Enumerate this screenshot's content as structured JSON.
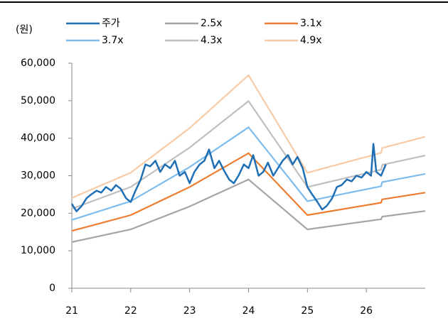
{
  "chart_data": {
    "type": "line",
    "unit_label": "(원)",
    "x": [
      21,
      22,
      23,
      24,
      25,
      26.25,
      26.27,
      27
    ],
    "xlim": [
      21,
      27
    ],
    "xticks": [
      21,
      22,
      23,
      24,
      25,
      26
    ],
    "ylim": [
      0,
      60000
    ],
    "yticks": [
      0,
      {
        "value": 10000,
        "label": "10,000"
      },
      {
        "value": 20000,
        "label": "20,000"
      },
      {
        "value": 30000,
        "label": "30,000"
      },
      {
        "value": 40000,
        "label": "40,000"
      },
      {
        "value": 50000,
        "label": "50,000"
      },
      {
        "value": 60000,
        "label": "60,000"
      }
    ],
    "series": [
      {
        "name": "주가",
        "color": "#1f6fb5",
        "x": [
          21.0,
          21.08,
          21.17,
          21.25,
          21.33,
          21.42,
          21.5,
          21.58,
          21.67,
          21.75,
          21.83,
          21.92,
          22.0,
          22.08,
          22.17,
          22.25,
          22.33,
          22.42,
          22.5,
          22.58,
          22.67,
          22.75,
          22.83,
          22.92,
          23.0,
          23.08,
          23.17,
          23.25,
          23.33,
          23.42,
          23.5,
          23.58,
          23.67,
          23.75,
          23.83,
          23.92,
          24.0,
          24.08,
          24.17,
          24.25,
          24.33,
          24.42,
          24.5,
          24.58,
          24.67,
          24.75,
          24.83,
          24.92,
          25.0,
          25.08,
          25.17,
          25.25,
          25.33,
          25.42,
          25.5,
          25.58,
          25.67,
          25.75,
          25.83,
          25.92,
          26.0,
          26.08,
          26.12,
          26.17,
          26.25,
          26.33
        ],
        "values": [
          22500,
          20500,
          22000,
          24000,
          25000,
          26000,
          25500,
          27000,
          26000,
          27500,
          26500,
          24000,
          23000,
          26000,
          29000,
          33000,
          32500,
          34000,
          31000,
          33000,
          32000,
          34000,
          30000,
          31000,
          28000,
          31000,
          33000,
          34000,
          37000,
          32000,
          34000,
          31500,
          29000,
          28000,
          30000,
          33000,
          32000,
          35500,
          30000,
          31000,
          33500,
          30000,
          32000,
          34000,
          35500,
          33000,
          35000,
          32000,
          27000,
          25000,
          23000,
          21000,
          22000,
          24000,
          27000,
          27500,
          29000,
          28500,
          30000,
          29500,
          31000,
          30000,
          38500,
          31000,
          30000,
          33000
        ]
      },
      {
        "name": "2.5x",
        "color": "#a5a5a5",
        "values": [
          12300,
          15700,
          21800,
          29000,
          15700,
          18400,
          19100,
          20600
        ]
      },
      {
        "name": "3.1x",
        "color": "#ed7d31",
        "values": [
          15300,
          19500,
          27000,
          36000,
          19500,
          22800,
          23700,
          25500
        ]
      },
      {
        "name": "3.7x",
        "color": "#7fbcec",
        "values": [
          18200,
          23200,
          32300,
          42900,
          23200,
          27200,
          28300,
          30500
        ]
      },
      {
        "name": "4.3x",
        "color": "#bfbfbf",
        "values": [
          21200,
          27000,
          37500,
          49900,
          27000,
          31600,
          32900,
          35400
        ]
      },
      {
        "name": "4.9x",
        "color": "#f8cba6",
        "values": [
          24100,
          30800,
          42700,
          56800,
          30800,
          36100,
          37400,
          40400
        ]
      }
    ]
  }
}
